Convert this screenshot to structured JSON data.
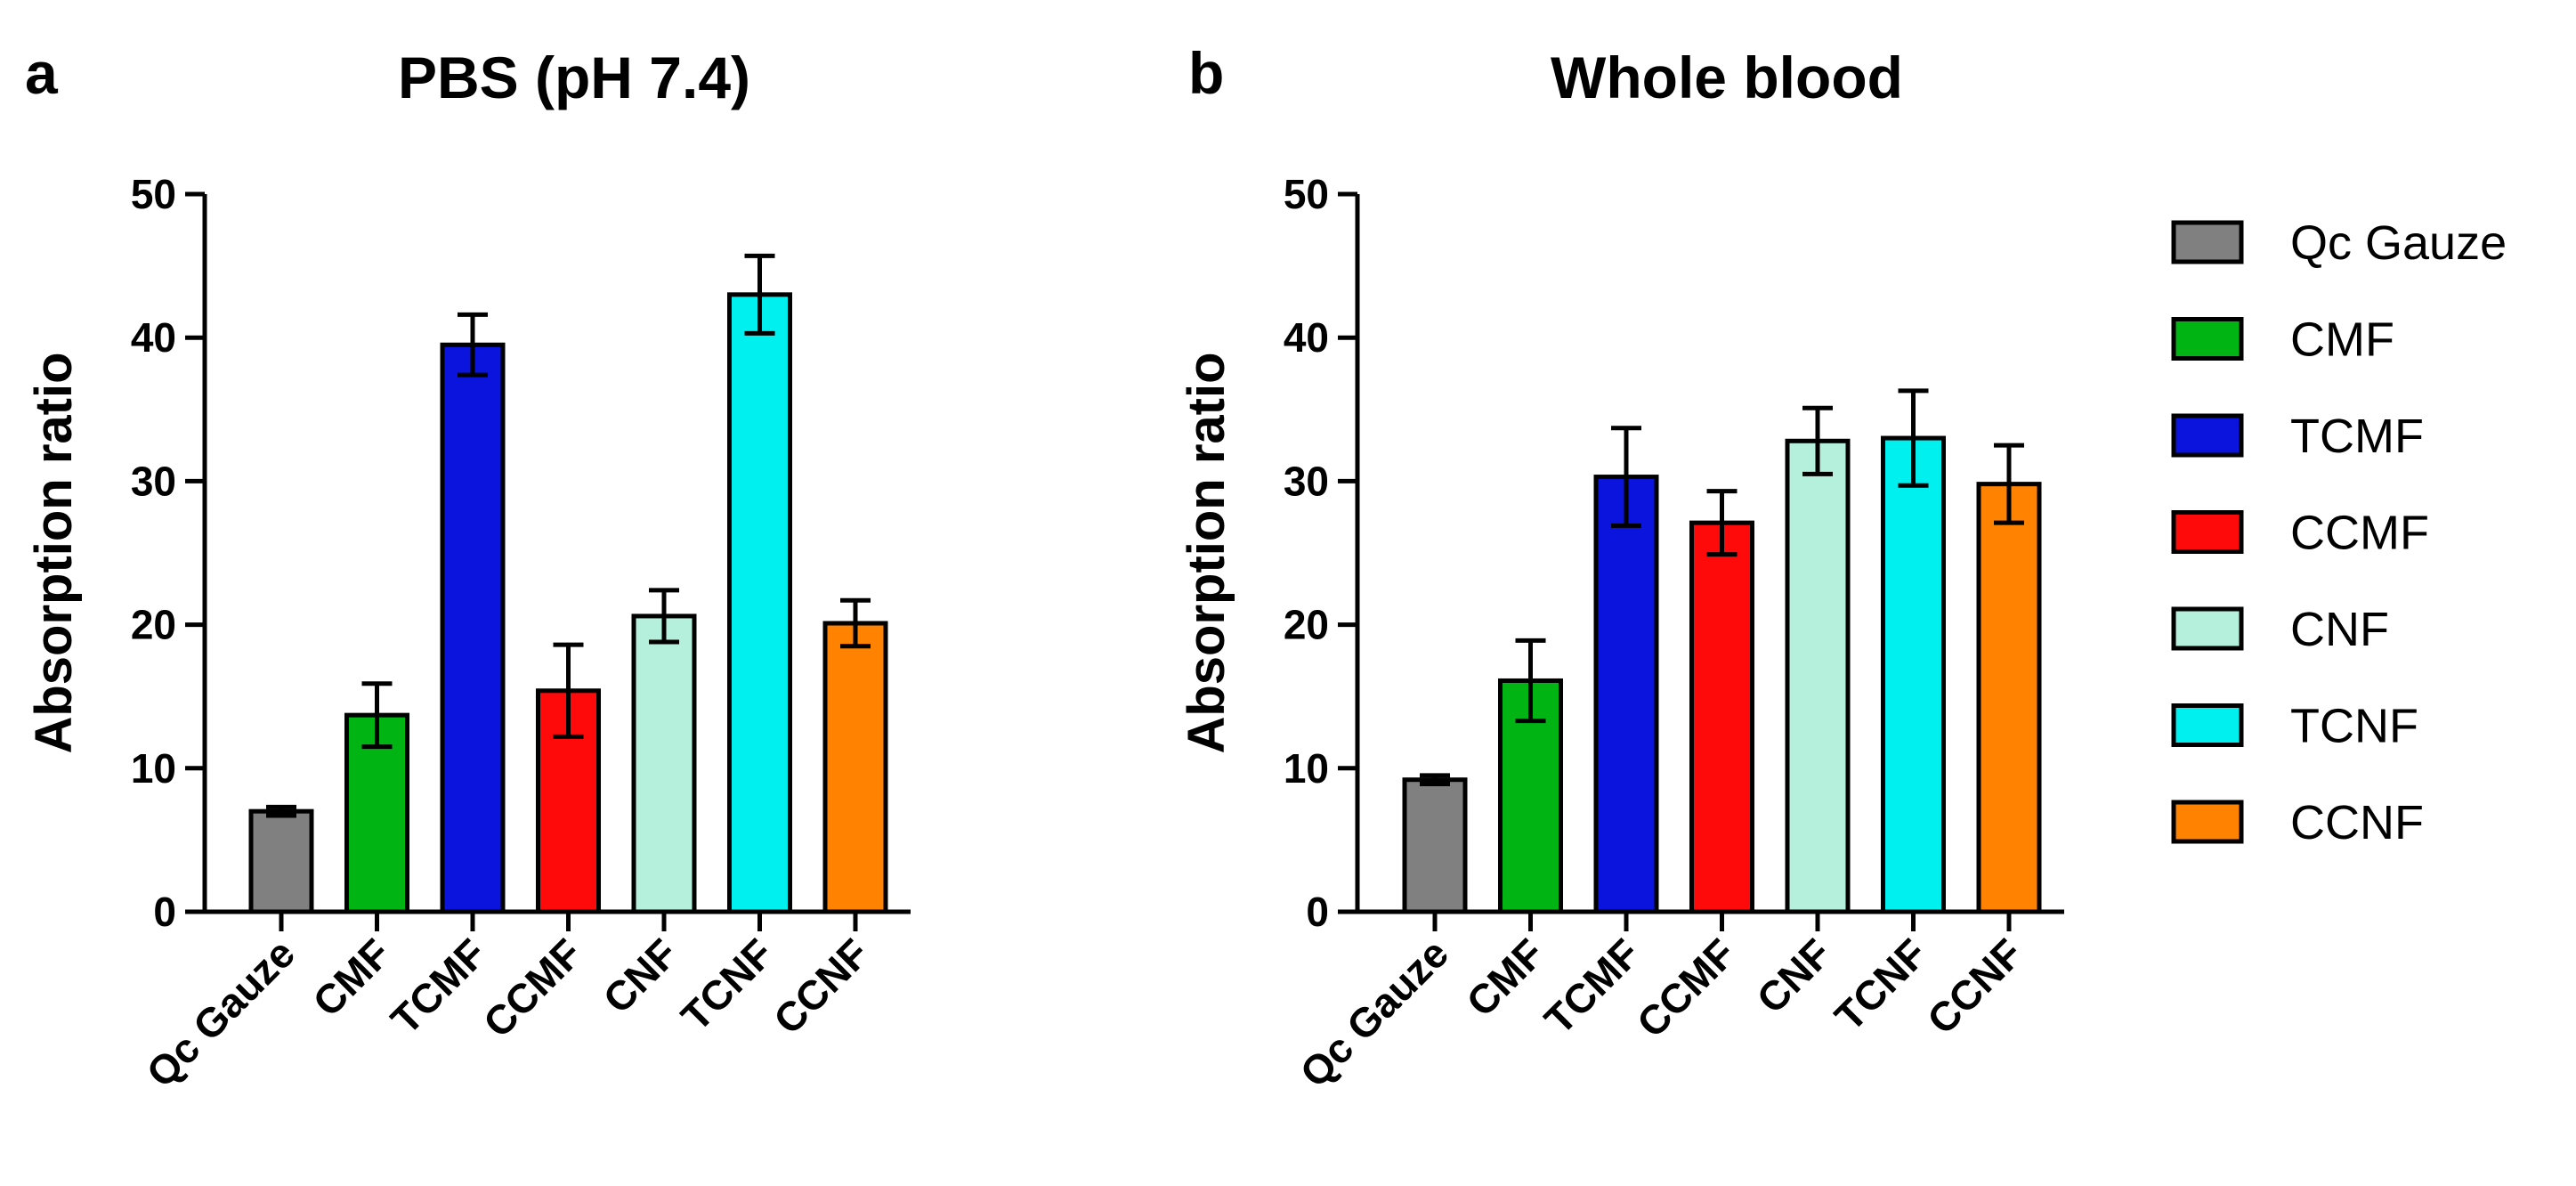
{
  "chart_data": [
    {
      "type": "bar",
      "panel": "a",
      "title": "PBS (pH 7.4)",
      "ylabel": "Absorption ratio",
      "xlabel": "",
      "ylim": [
        0,
        50
      ],
      "yticks": [
        0,
        10,
        20,
        30,
        40,
        50
      ],
      "grid": false,
      "categories": [
        "Qc Gauze",
        "CMF",
        "TCMF",
        "CCMF",
        "CNF",
        "TCNF",
        "CCNF"
      ],
      "values": [
        7.0,
        13.7,
        39.5,
        15.4,
        20.6,
        43.0,
        20.1
      ],
      "errors": [
        0.3,
        2.2,
        2.1,
        3.2,
        1.8,
        2.7,
        1.6
      ]
    },
    {
      "type": "bar",
      "panel": "b",
      "title": "Whole blood",
      "ylabel": "Absorption ratio",
      "xlabel": "",
      "ylim": [
        0,
        50
      ],
      "yticks": [
        0,
        10,
        20,
        30,
        40,
        50
      ],
      "grid": false,
      "categories": [
        "Qc Gauze",
        "CMF",
        "TCMF",
        "CCMF",
        "CNF",
        "TCNF",
        "CCNF"
      ],
      "values": [
        9.2,
        16.1,
        30.3,
        27.1,
        32.8,
        33.0,
        29.8
      ],
      "errors": [
        0.3,
        2.8,
        3.4,
        2.2,
        2.3,
        3.3,
        2.7
      ]
    }
  ],
  "legend": {
    "placement": "right",
    "entries": [
      "Qc Gauze",
      "CMF",
      "TCMF",
      "CCMF",
      "CNF",
      "TCNF",
      "CCNF"
    ]
  },
  "colors": [
    "#808080",
    "#00b414",
    "#0a14dc",
    "#ff0a0a",
    "#b4f0dc",
    "#00f0f0",
    "#ff8200"
  ]
}
